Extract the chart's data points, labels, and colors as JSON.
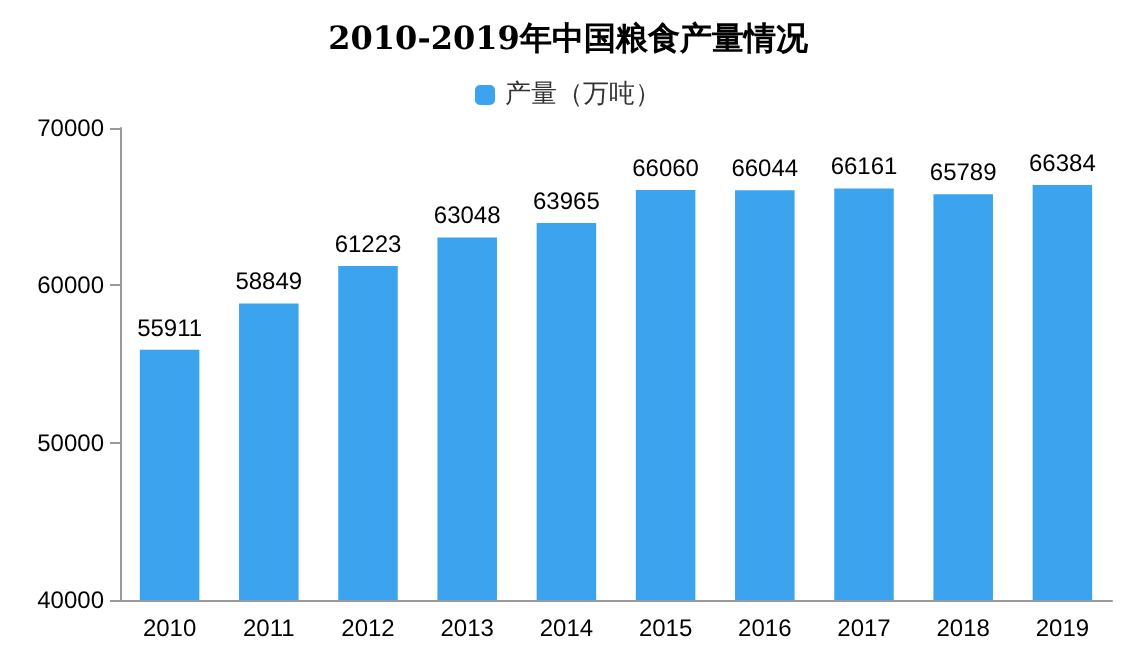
{
  "chart_data": {
    "type": "bar",
    "title": "2010-2019年中国粮食产量情况",
    "categories": [
      "2010",
      "2011",
      "2012",
      "2013",
      "2014",
      "2015",
      "2016",
      "2017",
      "2018",
      "2019"
    ],
    "series": [
      {
        "name": "产量（万吨）",
        "color": "#3ca3ef",
        "values": [
          55911,
          58849,
          61223,
          63048,
          63965,
          66060,
          66044,
          66161,
          65789,
          66384
        ]
      }
    ],
    "ylim": [
      40000,
      70000
    ],
    "yticks": [
      40000,
      50000,
      60000,
      70000
    ],
    "grid": false,
    "legend": "top",
    "data_labels": true
  }
}
